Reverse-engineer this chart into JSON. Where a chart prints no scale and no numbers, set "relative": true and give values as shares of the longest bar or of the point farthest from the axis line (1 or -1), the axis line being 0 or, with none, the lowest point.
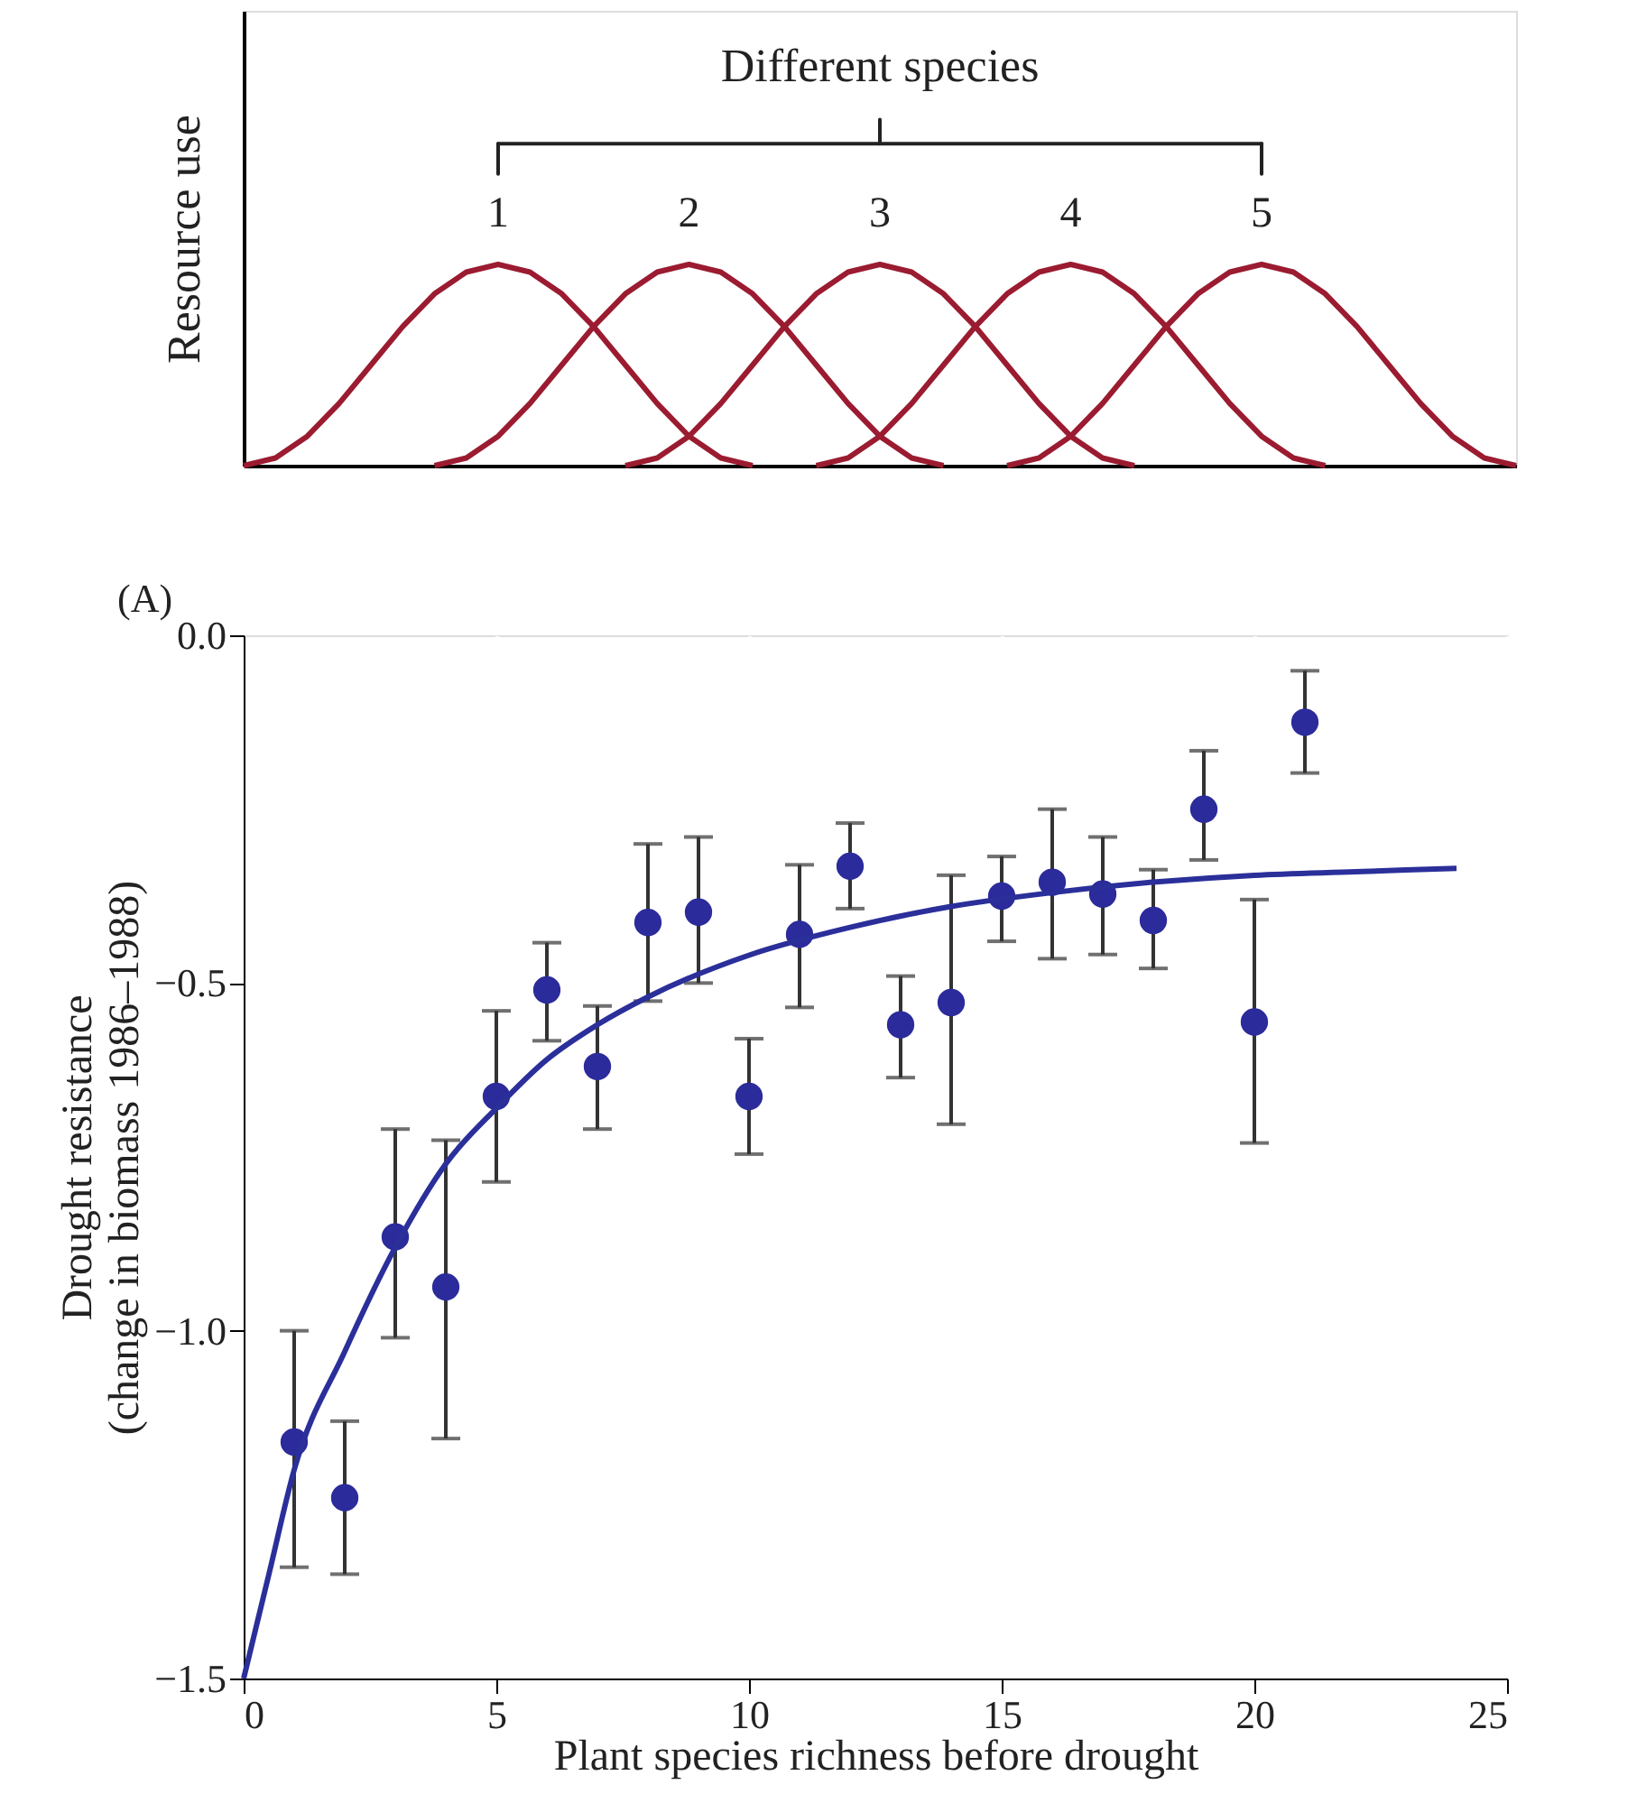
{
  "chart_data": [
    {
      "type": "line",
      "relative": true,
      "ylabel": "Resource use",
      "annotations": [
        "Different species"
      ],
      "grid": false,
      "line_style": "solid",
      "categories": [
        null,
        null,
        null,
        null,
        null,
        null,
        null,
        null,
        null,
        null,
        null,
        null,
        null,
        null,
        null,
        null,
        null,
        null,
        null,
        null,
        null,
        null,
        null,
        null,
        null,
        null,
        null,
        null,
        null,
        null,
        null,
        null,
        null,
        null,
        null,
        null,
        null,
        null,
        null,
        null,
        null
      ],
      "series": [
        {
          "name": "1",
          "color": "#9b1b30",
          "values": [
            0,
            0.038,
            0.146,
            0.309,
            0.5,
            0.691,
            0.854,
            0.962,
            1,
            0.962,
            0.854,
            0.691,
            0.5,
            0.309,
            0.146,
            0.038,
            0,
            null,
            null,
            null,
            null,
            null,
            null,
            null,
            null,
            null,
            null,
            null,
            null,
            null,
            null,
            null,
            null,
            null,
            null,
            null,
            null,
            null,
            null,
            null,
            null
          ]
        },
        {
          "name": "2",
          "color": "#9b1b30",
          "values": [
            null,
            null,
            null,
            null,
            null,
            null,
            0,
            0.038,
            0.146,
            0.309,
            0.5,
            0.691,
            0.854,
            0.962,
            1,
            0.962,
            0.854,
            0.691,
            0.5,
            0.309,
            0.146,
            0.038,
            0,
            null,
            null,
            null,
            null,
            null,
            null,
            null,
            null,
            null,
            null,
            null,
            null,
            null,
            null,
            null,
            null,
            null,
            null
          ]
        },
        {
          "name": "3",
          "color": "#9b1b30",
          "values": [
            null,
            null,
            null,
            null,
            null,
            null,
            null,
            null,
            null,
            null,
            null,
            null,
            0,
            0.038,
            0.146,
            0.309,
            0.5,
            0.691,
            0.854,
            0.962,
            1,
            0.962,
            0.854,
            0.691,
            0.5,
            0.309,
            0.146,
            0.038,
            0,
            null,
            null,
            null,
            null,
            null,
            null,
            null,
            null,
            null,
            null,
            null,
            null
          ]
        },
        {
          "name": "4",
          "color": "#9b1b30",
          "values": [
            null,
            null,
            null,
            null,
            null,
            null,
            null,
            null,
            null,
            null,
            null,
            null,
            null,
            null,
            null,
            null,
            null,
            null,
            0,
            0.038,
            0.146,
            0.309,
            0.5,
            0.691,
            0.854,
            0.962,
            1,
            0.962,
            0.854,
            0.691,
            0.5,
            0.309,
            0.146,
            0.038,
            0,
            null,
            null,
            null,
            null,
            null,
            null
          ]
        },
        {
          "name": "5",
          "color": "#9b1b30",
          "values": [
            null,
            null,
            null,
            null,
            null,
            null,
            null,
            null,
            null,
            null,
            null,
            null,
            null,
            null,
            null,
            null,
            null,
            null,
            null,
            null,
            null,
            null,
            null,
            null,
            0,
            0.038,
            0.146,
            0.309,
            0.5,
            0.691,
            0.854,
            0.962,
            1,
            0.962,
            0.854,
            0.691,
            0.5,
            0.309,
            0.146,
            0.038,
            0
          ]
        }
      ]
    },
    {
      "type": "scatter",
      "annotations": [
        "(A)"
      ],
      "xlabel": "Plant species richness before drought",
      "ylabel": "Drought resistance\n(change in biomass 1986–1988)",
      "grid": "x",
      "xlim": [
        0,
        25
      ],
      "xticks": [
        0,
        5,
        10,
        15,
        20,
        25
      ],
      "ylim": [
        -1.5,
        0
      ],
      "yticks": [
        {
          "value": -1.5,
          "label": "−1.5"
        },
        {
          "value": -1.0,
          "label": "−1.0"
        },
        {
          "value": -0.5,
          "label": "−0.5"
        },
        {
          "value": 0,
          "label": "0.0"
        }
      ],
      "series": [
        {
          "type": "scatter",
          "marker": "circle",
          "color": "#2b2b9b",
          "x": [
            1,
            2,
            3,
            4,
            5,
            6,
            7,
            8,
            9,
            10,
            11,
            12,
            13,
            14,
            15,
            16,
            17,
            18,
            19,
            20,
            21
          ],
          "values": [
            -1.16,
            -1.24,
            -0.865,
            -0.937,
            -0.663,
            -0.51,
            -0.62,
            -0.413,
            -0.398,
            -0.663,
            -0.43,
            -0.332,
            -0.56,
            -0.528,
            -0.375,
            -0.355,
            -0.372,
            -0.41,
            -0.25,
            -0.556,
            -0.125
          ],
          "errors": [
            [
              -1.34,
              -1.0
            ],
            [
              -1.35,
              -1.13
            ],
            [
              -1.01,
              -0.71
            ],
            [
              -1.155,
              -0.726
            ],
            [
              -0.786,
              -0.54
            ],
            [
              -0.583,
              -0.442
            ],
            [
              -0.71,
              -0.533
            ],
            [
              -0.526,
              -0.3
            ],
            [
              -0.5,
              -0.29
            ],
            [
              -0.746,
              -0.58
            ],
            [
              -0.535,
              -0.33
            ],
            [
              -0.393,
              -0.27
            ],
            [
              -0.636,
              -0.49
            ],
            [
              -0.703,
              -0.345
            ],
            [
              -0.44,
              -0.318
            ],
            [
              -0.465,
              -0.25
            ],
            [
              -0.459,
              -0.29
            ],
            [
              -0.479,
              -0.337
            ],
            [
              -0.323,
              -0.166
            ],
            [
              -0.73,
              -0.38
            ],
            [
              -0.198,
              -0.051
            ]
          ]
        },
        {
          "type": "line",
          "color": "#2b2f9a",
          "x": [
            0,
            0.5,
            1,
            2,
            3,
            4,
            5,
            6,
            7,
            8,
            10,
            12,
            14,
            16,
            18,
            20,
            22,
            24
          ],
          "values": [
            -1.5,
            -1.35,
            -1.2,
            -1.03,
            -0.88,
            -0.76,
            -0.68,
            -0.61,
            -0.56,
            -0.52,
            -0.46,
            -0.42,
            -0.39,
            -0.37,
            -0.355,
            -0.345,
            -0.34,
            -0.335
          ]
        }
      ]
    }
  ]
}
